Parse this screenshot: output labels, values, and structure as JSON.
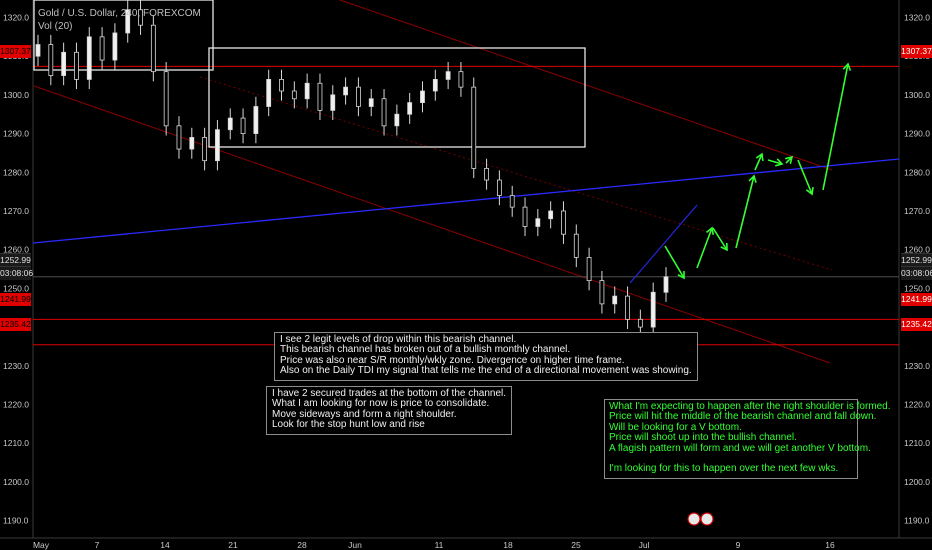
{
  "header": {
    "title": "Gold / U.S. Dollar, 240, FOREXCOM",
    "volume": "Vol (20)"
  },
  "chart_data": {
    "type": "candlestick",
    "symbol": "Gold / U.S. Dollar",
    "interval": "240",
    "source": "FOREXCOM",
    "ylim": [
      1183,
      1324
    ],
    "y_ticks": [
      1190,
      1200,
      1210,
      1220,
      1230,
      1240,
      1250,
      1260,
      1270,
      1280,
      1290,
      1300,
      1310,
      1320
    ],
    "x_ticks": [
      "May",
      "7",
      "14",
      "21",
      "28",
      "Jun",
      "11",
      "18",
      "25",
      "Jul",
      "9",
      "16"
    ],
    "price_labels": {
      "resistance": "1307.37",
      "current": "1252.99",
      "countdown": "03:08:06",
      "support1": "1241.99",
      "support2": "1235.42"
    },
    "series": [
      {
        "name": "close",
        "values": [
          1313,
          1305,
          1311,
          1304,
          1315,
          1309,
          1316,
          1322,
          1318,
          1306,
          1292,
          1286,
          1289,
          1283,
          1291,
          1294,
          1290,
          1297,
          1304,
          1301,
          1299,
          1303,
          1296,
          1300,
          1302,
          1297,
          1299,
          1292,
          1295,
          1298,
          1301,
          1304,
          1306,
          1302,
          1281,
          1278,
          1274,
          1271,
          1266,
          1268,
          1270,
          1264,
          1258,
          1252,
          1246,
          1248,
          1242,
          1240,
          1249,
          1252.99
        ]
      }
    ]
  },
  "notes": {
    "note1": "I see 2 legit levels of drop within this bearish channel.\nThis bearish channel has broken out of a bullish monthly channel.\nPrice was also near S/R monthly/wkly zone. Divergence on higher time frame.\nAlso on the Daily TDI my signal that tells me the end of a directional movement was showing.",
    "note2": "I have 2 secured trades at the bottom of the channel.\nWhat I am looking for now is price to consolidate.\nMove sideways and form a right shoulder.\nLook for the stop hunt low and rise",
    "note3": "What I'm expecting to happen after the right shoulder is formed.\nPrice will hit the middle of the bearish channel and fall down.\nWill be looking for a V bottom.\nPrice will shoot up into the bullish channel.\nA flagish pattern will form and we will get another V bottom.\n\nI'm looking for this to happen over the next few wks."
  },
  "colors": {
    "resistance": "#e00000",
    "trend_blue": "#2a2aff",
    "arrow_green": "#33ff33",
    "channel": "#8a0000"
  }
}
